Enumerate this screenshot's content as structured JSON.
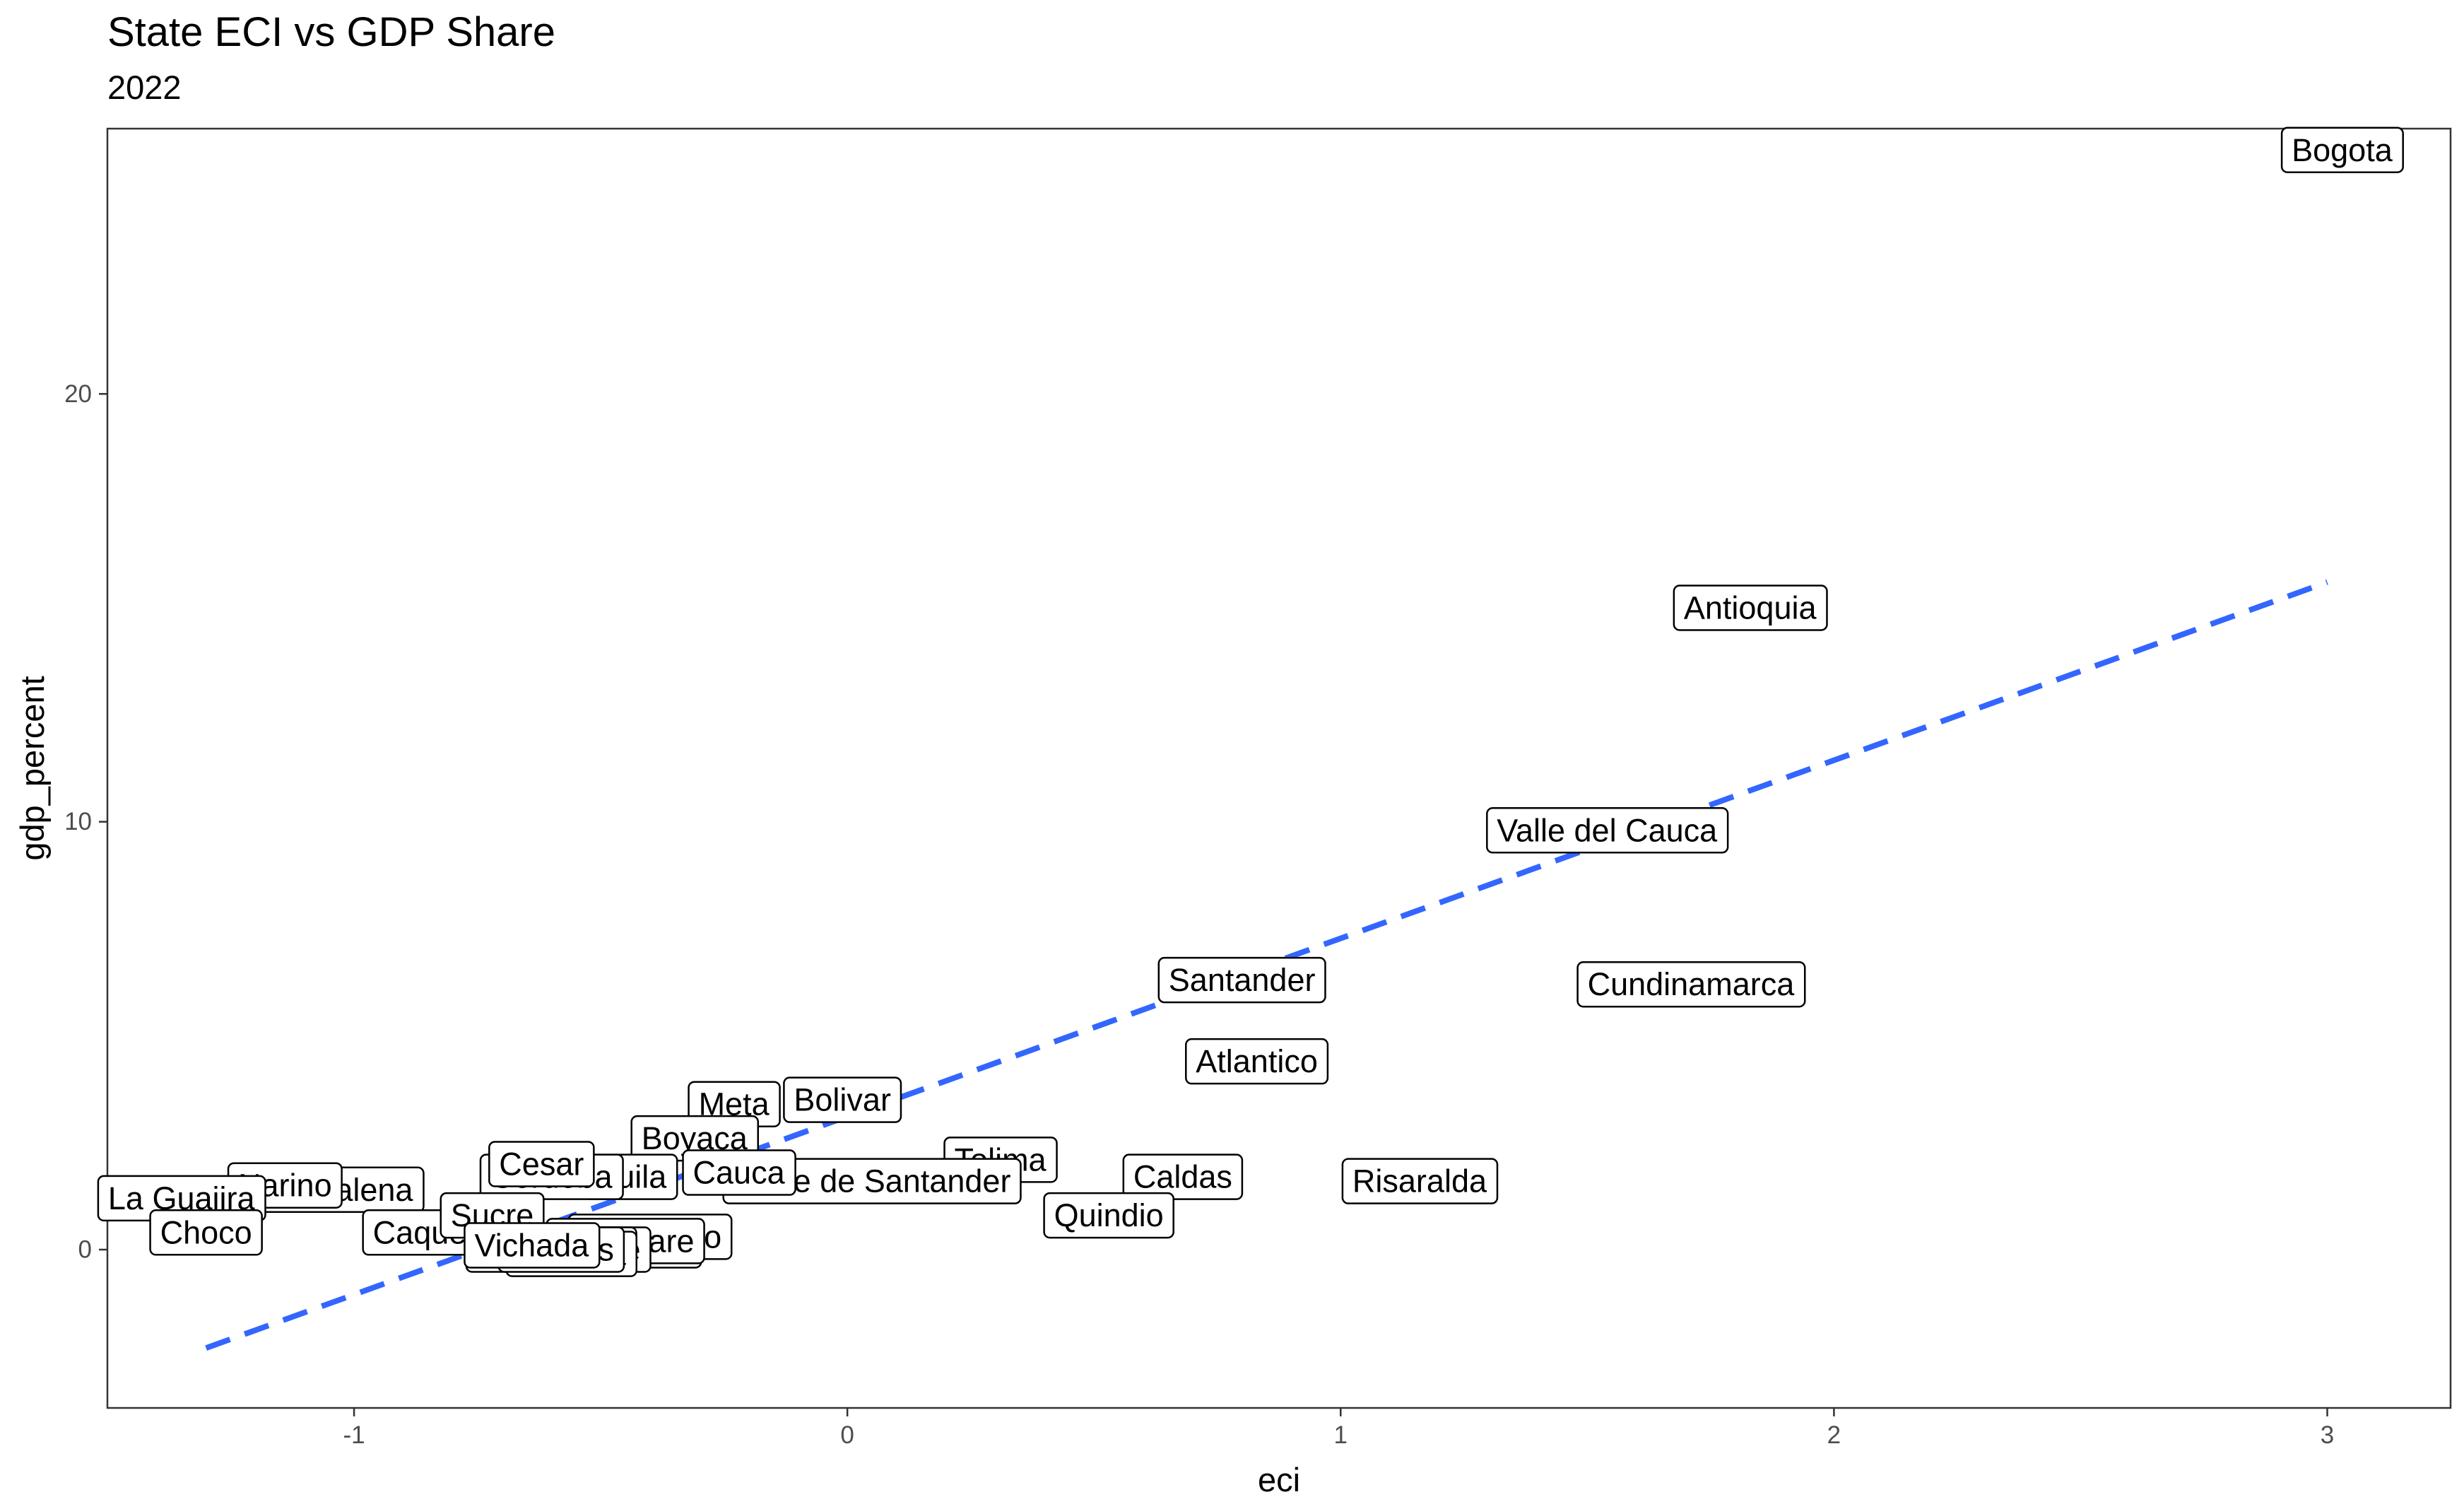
{
  "chart_data": {
    "type": "scatter",
    "title": "State ECI vs GDP Share",
    "subtitle": "2022",
    "xlabel": "eci",
    "ylabel": "gdp_percent",
    "xlim": [
      -1.5,
      3.25
    ],
    "ylim": [
      -3.7,
      26.2
    ],
    "x_ticks": [
      -1,
      0,
      1,
      2,
      3
    ],
    "y_ticks": [
      0,
      10,
      20
    ],
    "grid": false,
    "legend": "none",
    "points": [
      {
        "label": "Bogota",
        "x": 3.03,
        "y": 25.7
      },
      {
        "label": "Antioquia",
        "x": 1.83,
        "y": 15.0
      },
      {
        "label": "Valle del Cauca",
        "x": 1.54,
        "y": 9.8
      },
      {
        "label": "Cundinamarca",
        "x": 1.71,
        "y": 6.2
      },
      {
        "label": "Santander",
        "x": 0.8,
        "y": 6.3
      },
      {
        "label": "Atlantico",
        "x": 0.83,
        "y": 4.4
      },
      {
        "label": "Risaralda",
        "x": 1.16,
        "y": 1.6
      },
      {
        "label": "Caldas",
        "x": 0.68,
        "y": 1.7
      },
      {
        "label": "Quindio",
        "x": 0.53,
        "y": 0.8
      },
      {
        "label": "Tolima",
        "x": 0.31,
        "y": 2.1
      },
      {
        "label": "Norte de Santander",
        "x": 0.05,
        "y": 1.6
      },
      {
        "label": "Bolivar",
        "x": -0.01,
        "y": 3.5
      },
      {
        "label": "Meta",
        "x": -0.23,
        "y": 3.4
      },
      {
        "label": "Boyaca",
        "x": -0.31,
        "y": 2.6
      },
      {
        "label": "Cauca",
        "x": -0.22,
        "y": 1.8
      },
      {
        "label": "Huila",
        "x": -0.44,
        "y": 1.7
      },
      {
        "label": "Cordoba",
        "x": -0.6,
        "y": 1.7
      },
      {
        "label": "Cesar",
        "x": -0.62,
        "y": 2.0
      },
      {
        "label": "Magdalena",
        "x": -1.04,
        "y": 1.4
      },
      {
        "label": "Narino",
        "x": -1.14,
        "y": 1.5
      },
      {
        "label": "La Guajira",
        "x": -1.35,
        "y": 1.2
      },
      {
        "label": "Choco",
        "x": -1.3,
        "y": 0.4
      },
      {
        "label": "Caqueta",
        "x": -0.84,
        "y": 0.4
      },
      {
        "label": "Sucre",
        "x": -0.72,
        "y": 0.8
      },
      {
        "label": "Putumayo",
        "x": -0.4,
        "y": 0.3
      },
      {
        "label": "Arauca",
        "x": -0.42,
        "y": 0.1
      },
      {
        "label": "Casanare",
        "x": -0.45,
        "y": 0.2
      },
      {
        "label": "Guaviare",
        "x": -0.55,
        "y": 0.0
      },
      {
        "label": "Amazonas",
        "x": -0.6,
        "y": 0.0
      },
      {
        "label": "Guainia",
        "x": -0.56,
        "y": -0.1
      },
      {
        "label": "Vaupes",
        "x": -0.58,
        "y": 0.0
      },
      {
        "label": "Vichada",
        "x": -0.64,
        "y": 0.1
      }
    ],
    "trend_line": {
      "style": "dashed",
      "color": "#3366FF",
      "x": [
        -1.3,
        3.0
      ],
      "y": [
        -2.3,
        15.6
      ]
    }
  }
}
